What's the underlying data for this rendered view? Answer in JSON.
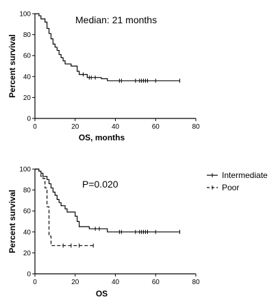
{
  "chart_data": [
    {
      "type": "line",
      "subtype": "kaplan-meier",
      "annotation": "Median: 21 months",
      "xlabel": "OS, months",
      "ylabel": "Percent survival",
      "xlim": [
        0,
        80
      ],
      "ylim": [
        0,
        100
      ],
      "xticks": [
        0,
        20,
        40,
        60,
        80
      ],
      "yticks": [
        0,
        20,
        40,
        60,
        80,
        100
      ],
      "grid": false,
      "series": [
        {
          "style": "solid",
          "color": "#000000",
          "steps": [
            [
              0,
              100
            ],
            [
              2,
              98
            ],
            [
              3,
              95
            ],
            [
              5,
              92
            ],
            [
              6,
              86
            ],
            [
              7,
              81
            ],
            [
              8,
              76
            ],
            [
              9,
              71
            ],
            [
              10,
              68
            ],
            [
              11,
              65
            ],
            [
              12,
              61
            ],
            [
              13,
              58
            ],
            [
              14,
              55
            ],
            [
              15,
              52
            ],
            [
              18,
              50
            ],
            [
              21,
              45
            ],
            [
              22,
              42
            ],
            [
              26,
              39
            ],
            [
              33,
              38
            ],
            [
              36,
              36
            ],
            [
              72,
              36
            ]
          ],
          "censored": [
            24,
            27,
            28,
            30,
            42,
            43,
            50,
            52,
            53,
            54,
            55,
            56,
            60,
            72
          ]
        }
      ]
    },
    {
      "type": "line",
      "subtype": "kaplan-meier",
      "annotation": "P=0.020",
      "xlabel": "OS",
      "ylabel": "Percent survival",
      "xlim": [
        0,
        80
      ],
      "ylim": [
        0,
        100
      ],
      "xticks": [
        0,
        20,
        40,
        60,
        80
      ],
      "yticks": [
        0,
        20,
        40,
        60,
        80,
        100
      ],
      "grid": false,
      "legend_position": "right",
      "series": [
        {
          "name": "Intermediate",
          "style": "solid",
          "color": "#000000",
          "steps": [
            [
              0,
              100
            ],
            [
              2,
              98
            ],
            [
              3,
              96
            ],
            [
              4,
              93
            ],
            [
              6,
              90
            ],
            [
              7,
              86
            ],
            [
              8,
              82
            ],
            [
              9,
              78
            ],
            [
              10,
              75
            ],
            [
              11,
              71
            ],
            [
              12,
              68
            ],
            [
              13,
              65
            ],
            [
              15,
              62
            ],
            [
              16,
              59
            ],
            [
              20,
              55
            ],
            [
              21,
              50
            ],
            [
              22,
              45
            ],
            [
              27,
              43
            ],
            [
              36,
              40
            ],
            [
              72,
              40
            ]
          ],
          "censored": [
            30,
            32,
            42,
            43,
            50,
            52,
            53,
            54,
            55,
            56,
            60,
            72
          ]
        },
        {
          "name": "Poor",
          "style": "dashed",
          "color": "#000000",
          "steps": [
            [
              0,
              100
            ],
            [
              2,
              98
            ],
            [
              3,
              93
            ],
            [
              4,
              91
            ],
            [
              5,
              82
            ],
            [
              6,
              64
            ],
            [
              7,
              36
            ],
            [
              8,
              27
            ],
            [
              29,
              27
            ]
          ],
          "censored": [
            14,
            18,
            22,
            29
          ]
        }
      ]
    }
  ]
}
